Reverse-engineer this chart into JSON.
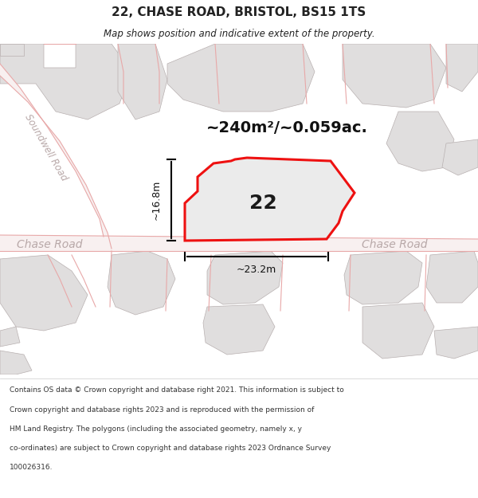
{
  "title": "22, CHASE ROAD, BRISTOL, BS15 1TS",
  "subtitle": "Map shows position and indicative extent of the property.",
  "area_label": "~240m²/~0.059ac.",
  "plot_number": "22",
  "dim_vertical": "~16.8m",
  "dim_horizontal": "~23.2m",
  "road_label_left": "Chase Road",
  "road_label_right": "Chase Road",
  "road_label_soundwell": "Soundwell Road",
  "copyright_lines": [
    "Contains OS data © Crown copyright and database right 2021. This information is subject to",
    "Crown copyright and database rights 2023 and is reproduced with the permission of",
    "HM Land Registry. The polygons (including the associated geometry, namely x, y",
    "co-ordinates) are subject to Crown copyright and database rights 2023 Ordnance Survey",
    "100026316."
  ],
  "map_bg": "#ffffff",
  "plot_fill": "#e8e8e8",
  "plot_edge_color": "#ee1111",
  "road_line_color": "#e8a8a8",
  "road_fill_color": "#f8f0f0",
  "building_fill": "#e0dede",
  "building_edge": "#b8b0b0",
  "road_label_color": "#b8a8a8",
  "title_color": "#222222",
  "dim_color": "#111111",
  "area_label_color": "#111111"
}
